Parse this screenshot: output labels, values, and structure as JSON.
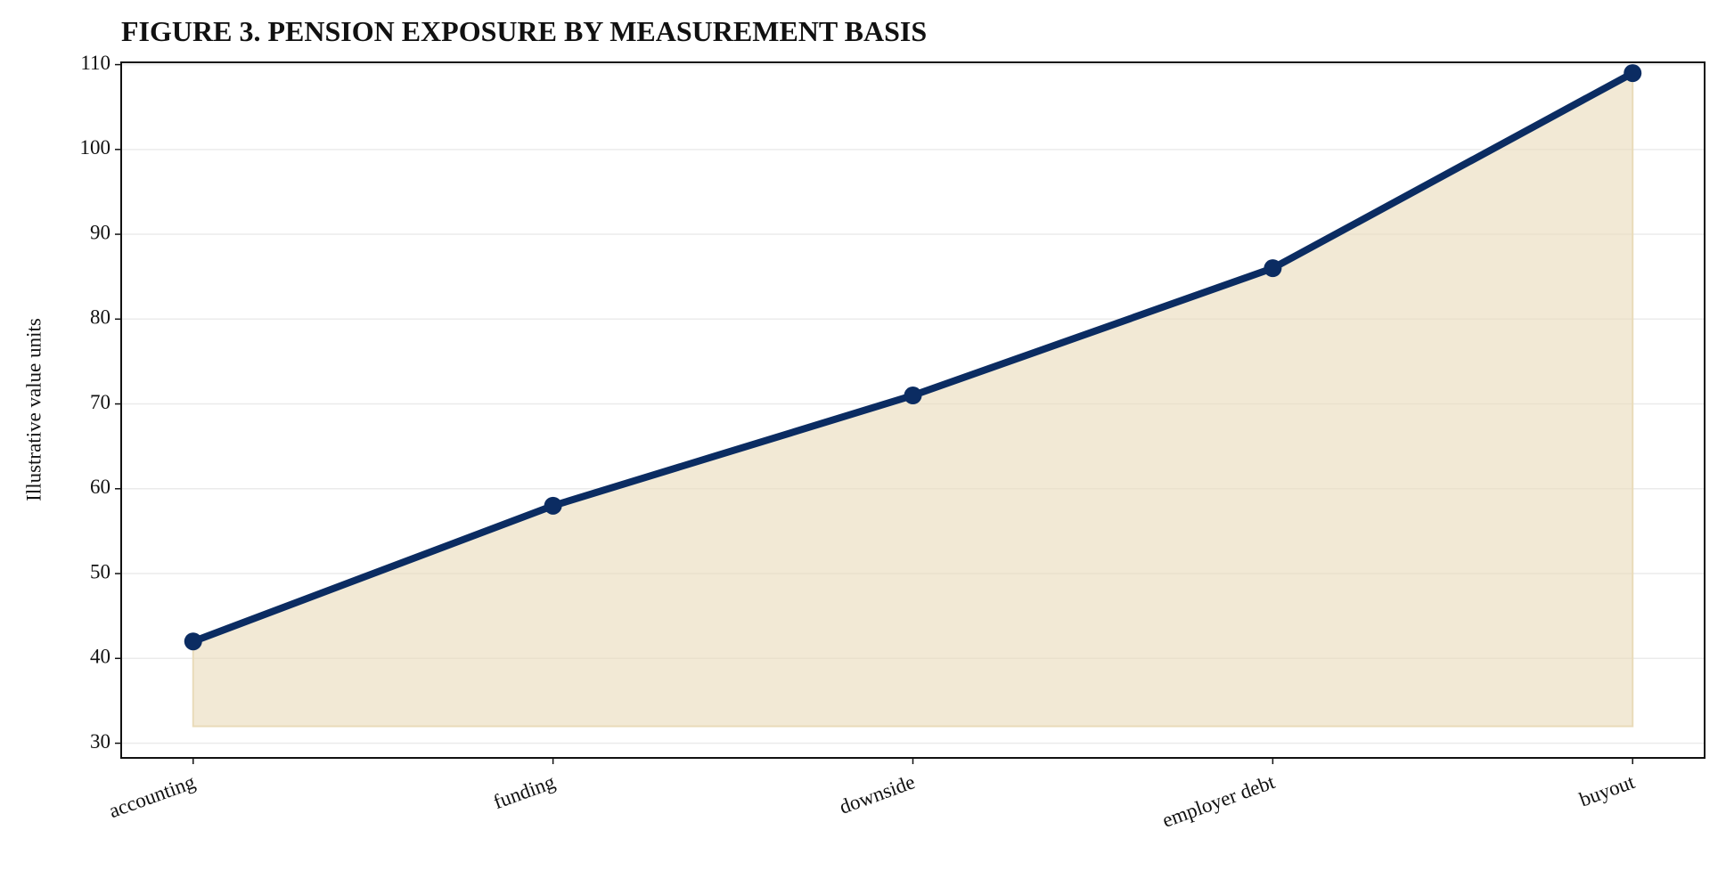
{
  "chart_data": {
    "type": "line",
    "title": "FIGURE 3. PENSION EXPOSURE BY MEASUREMENT BASIS",
    "y_label": "Illustrative value units",
    "categories": [
      "accounting",
      "funding",
      "downside",
      "employer debt",
      "buyout"
    ],
    "series": [
      {
        "values": [
          42,
          58,
          71,
          86,
          109
        ],
        "color": "#0b2c62"
      }
    ],
    "area_color": "#e9dbb9",
    "area_base": 32,
    "ylim": [
      28.27,
      110.27
    ],
    "yticks": [
      30,
      40,
      50,
      60,
      70,
      80,
      90,
      100,
      110
    ],
    "grid": true
  }
}
